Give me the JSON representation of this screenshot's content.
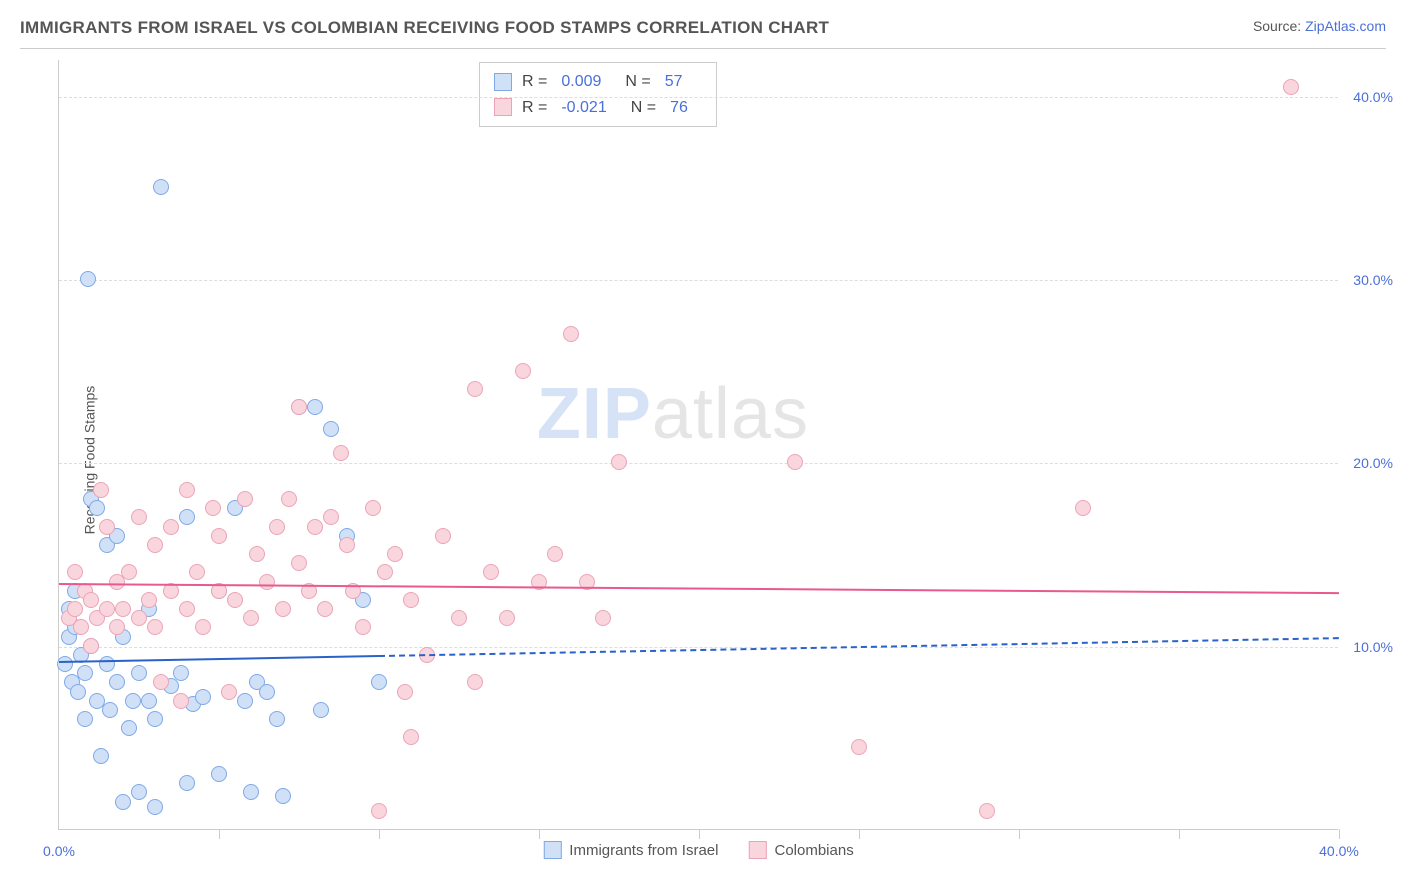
{
  "header": {
    "title": "IMMIGRANTS FROM ISRAEL VS COLOMBIAN RECEIVING FOOD STAMPS CORRELATION CHART",
    "source_prefix": "Source: ",
    "source_link": "ZipAtlas.com"
  },
  "watermark": {
    "zip": "ZIP",
    "atlas": "atlas"
  },
  "y_axis_label": "Receiving Food Stamps",
  "chart": {
    "type": "scatter",
    "xlim": [
      0,
      40
    ],
    "ylim": [
      0,
      42
    ],
    "x_tick_label_min": "0.0%",
    "x_tick_label_max": "40.0%",
    "x_minor_ticks": [
      5,
      10,
      15,
      20,
      25,
      30,
      35,
      40
    ],
    "y_ticks": [
      10,
      20,
      30,
      40
    ],
    "y_tick_labels": [
      "10.0%",
      "20.0%",
      "30.0%",
      "40.0%"
    ],
    "grid_color": "#dddddd",
    "background_color": "#ffffff",
    "axis_color": "#cccccc",
    "tick_label_color": "#4a6fd8",
    "marker_radius": 8,
    "marker_stroke_width": 1.5,
    "series": [
      {
        "name": "Immigrants from Israel",
        "fill": "#cfe0f7",
        "stroke": "#7fa9e8",
        "legend_swatch_fill": "#cfe0f7",
        "legend_swatch_stroke": "#7fa9e8",
        "R_label": "R =",
        "R": "0.009",
        "N_label": "N =",
        "N": "57",
        "trend": {
          "color": "#2a62c9",
          "dash_after_x": 10,
          "y_start": 9.2,
          "y_end": 10.5
        },
        "points": [
          [
            0.2,
            9.0
          ],
          [
            0.3,
            10.5
          ],
          [
            0.3,
            12.0
          ],
          [
            0.4,
            8.0
          ],
          [
            0.5,
            11.0
          ],
          [
            0.5,
            13.0
          ],
          [
            0.6,
            7.5
          ],
          [
            0.7,
            9.5
          ],
          [
            0.8,
            6.0
          ],
          [
            0.8,
            8.5
          ],
          [
            0.9,
            30.0
          ],
          [
            1.0,
            10.0
          ],
          [
            1.0,
            18.0
          ],
          [
            1.2,
            7.0
          ],
          [
            1.2,
            17.5
          ],
          [
            1.3,
            4.0
          ],
          [
            1.5,
            9.0
          ],
          [
            1.5,
            15.5
          ],
          [
            1.6,
            6.5
          ],
          [
            1.8,
            8.0
          ],
          [
            1.8,
            16.0
          ],
          [
            2.0,
            1.5
          ],
          [
            2.0,
            10.5
          ],
          [
            2.2,
            5.5
          ],
          [
            2.3,
            7.0
          ],
          [
            2.5,
            2.0
          ],
          [
            2.5,
            8.5
          ],
          [
            2.8,
            7.0
          ],
          [
            2.8,
            12.0
          ],
          [
            3.0,
            1.2
          ],
          [
            3.0,
            6.0
          ],
          [
            3.2,
            35.0
          ],
          [
            3.5,
            7.8
          ],
          [
            3.8,
            8.5
          ],
          [
            4.0,
            2.5
          ],
          [
            4.0,
            17.0
          ],
          [
            4.2,
            6.8
          ],
          [
            4.5,
            7.2
          ],
          [
            5.0,
            3.0
          ],
          [
            5.0,
            13.0
          ],
          [
            5.5,
            17.5
          ],
          [
            5.8,
            7.0
          ],
          [
            6.0,
            2.0
          ],
          [
            6.2,
            8.0
          ],
          [
            6.5,
            7.5
          ],
          [
            6.8,
            6.0
          ],
          [
            7.0,
            1.8
          ],
          [
            7.5,
            23.0
          ],
          [
            8.0,
            23.0
          ],
          [
            8.2,
            6.5
          ],
          [
            8.5,
            21.8
          ],
          [
            9.0,
            16.0
          ],
          [
            9.5,
            12.5
          ],
          [
            10.0,
            8.0
          ]
        ]
      },
      {
        "name": "Colombians",
        "fill": "#f9d6de",
        "stroke": "#eca3b5",
        "legend_swatch_fill": "#f9d6de",
        "legend_swatch_stroke": "#eca3b5",
        "R_label": "R =",
        "R": "-0.021",
        "N_label": "N =",
        "N": "76",
        "trend": {
          "color": "#e85a8f",
          "dash_after_x": 40,
          "y_start": 13.5,
          "y_end": 13.0
        },
        "points": [
          [
            0.3,
            11.5
          ],
          [
            0.5,
            12.0
          ],
          [
            0.5,
            14.0
          ],
          [
            0.7,
            11.0
          ],
          [
            0.8,
            13.0
          ],
          [
            1.0,
            10.0
          ],
          [
            1.0,
            12.5
          ],
          [
            1.2,
            11.5
          ],
          [
            1.3,
            18.5
          ],
          [
            1.5,
            12.0
          ],
          [
            1.5,
            16.5
          ],
          [
            1.8,
            11.0
          ],
          [
            1.8,
            13.5
          ],
          [
            2.0,
            12.0
          ],
          [
            2.2,
            14.0
          ],
          [
            2.5,
            11.5
          ],
          [
            2.5,
            17.0
          ],
          [
            2.8,
            12.5
          ],
          [
            3.0,
            11.0
          ],
          [
            3.0,
            15.5
          ],
          [
            3.2,
            8.0
          ],
          [
            3.5,
            13.0
          ],
          [
            3.5,
            16.5
          ],
          [
            3.8,
            7.0
          ],
          [
            4.0,
            12.0
          ],
          [
            4.0,
            18.5
          ],
          [
            4.3,
            14.0
          ],
          [
            4.5,
            11.0
          ],
          [
            4.8,
            17.5
          ],
          [
            5.0,
            13.0
          ],
          [
            5.0,
            16.0
          ],
          [
            5.3,
            7.5
          ],
          [
            5.5,
            12.5
          ],
          [
            5.8,
            18.0
          ],
          [
            6.0,
            11.5
          ],
          [
            6.2,
            15.0
          ],
          [
            6.5,
            13.5
          ],
          [
            6.8,
            16.5
          ],
          [
            7.0,
            12.0
          ],
          [
            7.2,
            18.0
          ],
          [
            7.5,
            14.5
          ],
          [
            7.5,
            23.0
          ],
          [
            7.8,
            13.0
          ],
          [
            8.0,
            16.5
          ],
          [
            8.3,
            12.0
          ],
          [
            8.5,
            17.0
          ],
          [
            8.8,
            20.5
          ],
          [
            9.0,
            15.5
          ],
          [
            9.2,
            13.0
          ],
          [
            9.5,
            11.0
          ],
          [
            9.8,
            17.5
          ],
          [
            10.0,
            1.0
          ],
          [
            10.2,
            14.0
          ],
          [
            10.5,
            15.0
          ],
          [
            10.8,
            7.5
          ],
          [
            11.0,
            5.0
          ],
          [
            11.0,
            12.5
          ],
          [
            11.5,
            9.5
          ],
          [
            12.0,
            16.0
          ],
          [
            12.5,
            11.5
          ],
          [
            13.0,
            8.0
          ],
          [
            13.0,
            24.0
          ],
          [
            13.5,
            14.0
          ],
          [
            14.0,
            11.5
          ],
          [
            14.5,
            25.0
          ],
          [
            15.0,
            13.5
          ],
          [
            15.5,
            15.0
          ],
          [
            16.0,
            27.0
          ],
          [
            16.5,
            13.5
          ],
          [
            17.0,
            11.5
          ],
          [
            17.5,
            20.0
          ],
          [
            23.0,
            20.0
          ],
          [
            25.0,
            4.5
          ],
          [
            29.0,
            1.0
          ],
          [
            32.0,
            17.5
          ],
          [
            38.5,
            40.5
          ]
        ]
      }
    ]
  },
  "legend": {
    "series1": "Immigrants from Israel",
    "series2": "Colombians"
  }
}
